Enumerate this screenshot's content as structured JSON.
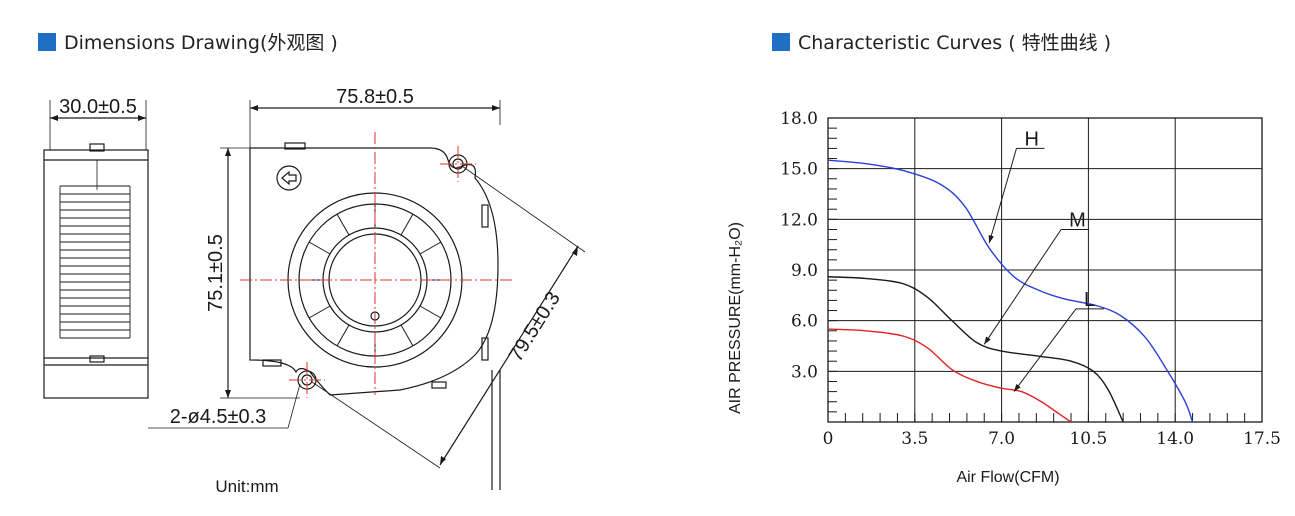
{
  "colors": {
    "accent_square": "#1f6fc4",
    "center_lines": "#e0302a",
    "curve_H": "#2b3fd8",
    "curve_M": "#1a1a1a",
    "curve_L": "#e02424",
    "grid": "#1a1a1a",
    "drawing": "#1a1a1a"
  },
  "dimensions_section": {
    "title": "Dimensions Drawing(外观图 )",
    "icon": "blue-square-icon",
    "labels": {
      "thickness": "30.0±0.5",
      "width": "75.8±0.5",
      "height": "75.1±0.5",
      "diagonal": "79.5±0.3",
      "holes": "2-ø4.5±0.3",
      "unit": "Unit:mm"
    }
  },
  "curves_section": {
    "title": "Characteristic Curves ( 特性曲线 )",
    "icon": "blue-square-icon"
  },
  "chart_data": {
    "type": "line",
    "title": "",
    "xlabel": "Air Flow(CFM)",
    "ylabel": "AIR PRESSURE(mm-H₂O)",
    "xlim": [
      0,
      17.5
    ],
    "ylim": [
      0,
      18.0
    ],
    "x_ticks": [
      "0",
      "3.5",
      "7.0",
      "10.5",
      "14.0",
      "17.5"
    ],
    "y_ticks": [
      "3.0",
      "6.0",
      "9.0",
      "12.0",
      "15.0",
      "18.0"
    ],
    "grid": true,
    "series": [
      {
        "name": "H",
        "color": "#2b3fd8",
        "points": [
          [
            0,
            15.5
          ],
          [
            1.5,
            15.3
          ],
          [
            3,
            14.9
          ],
          [
            4.5,
            14.1
          ],
          [
            5.5,
            12.8
          ],
          [
            6.5,
            10.3
          ],
          [
            7.5,
            8.6
          ],
          [
            8.5,
            7.8
          ],
          [
            9.5,
            7.3
          ],
          [
            10.8,
            6.9
          ],
          [
            11.8,
            6.3
          ],
          [
            12.8,
            5.0
          ],
          [
            13.7,
            3.0
          ],
          [
            14.4,
            1.2
          ],
          [
            14.7,
            0
          ]
        ]
      },
      {
        "name": "M",
        "color": "#1a1a1a",
        "points": [
          [
            0,
            8.6
          ],
          [
            1.5,
            8.5
          ],
          [
            3,
            8.2
          ],
          [
            4,
            7.4
          ],
          [
            5,
            6.0
          ],
          [
            6,
            4.7
          ],
          [
            7,
            4.2
          ],
          [
            8.5,
            3.9
          ],
          [
            9.8,
            3.6
          ],
          [
            10.7,
            3.0
          ],
          [
            11.3,
            1.9
          ],
          [
            11.9,
            0
          ]
        ]
      },
      {
        "name": "L",
        "color": "#e02424",
        "points": [
          [
            0,
            5.5
          ],
          [
            1.5,
            5.4
          ],
          [
            3,
            5.1
          ],
          [
            4,
            4.4
          ],
          [
            5,
            3.1
          ],
          [
            6,
            2.4
          ],
          [
            7,
            2.0
          ],
          [
            7.8,
            1.8
          ],
          [
            8.6,
            1.2
          ],
          [
            9.3,
            0.5
          ],
          [
            9.8,
            0
          ]
        ]
      }
    ]
  }
}
